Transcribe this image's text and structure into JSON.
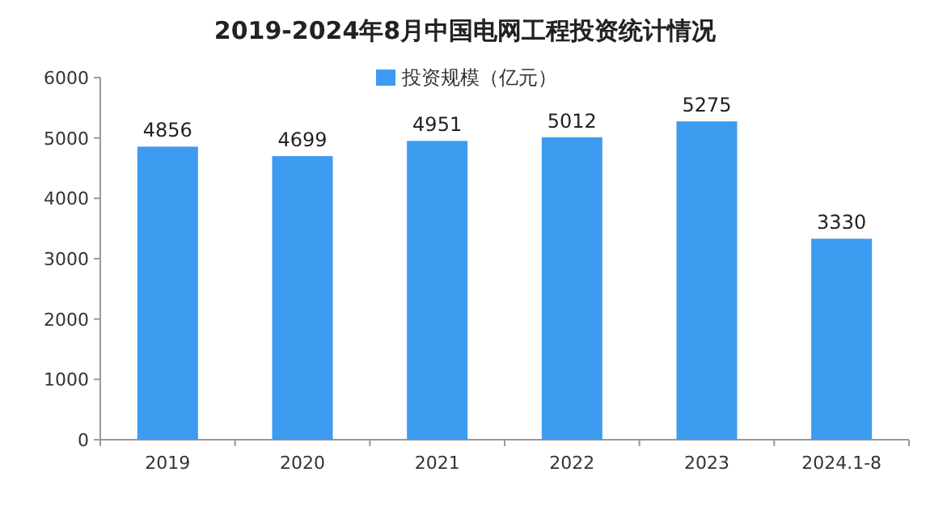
{
  "chart_data": {
    "type": "bar",
    "title": "2019-2024年8月中国电网工程投资统计情况",
    "categories": [
      "2019",
      "2020",
      "2021",
      "2022",
      "2023",
      "2024.1-8"
    ],
    "series": [
      {
        "name": "投资规模（亿元）",
        "color": "#3d9bf0",
        "values": [
          4856,
          4699,
          4951,
          5012,
          5275,
          3330
        ]
      }
    ],
    "ylim": [
      0,
      6000
    ],
    "yticks": [
      0,
      1000,
      2000,
      3000,
      4000,
      5000,
      6000
    ],
    "data_labels": true,
    "legend": "top",
    "grid": false
  }
}
